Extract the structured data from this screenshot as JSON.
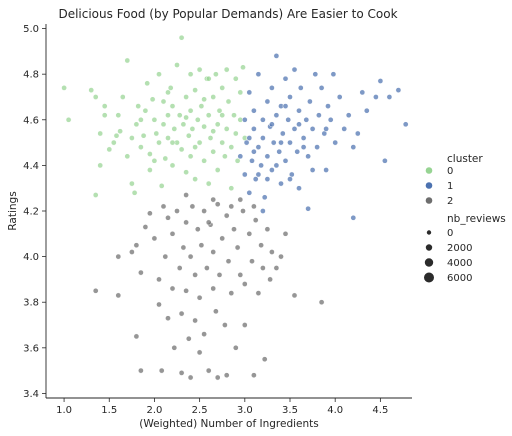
{
  "chart_data": {
    "type": "scatter",
    "title": "Delicious Food (by Popular Demands) Are Easier to Cook",
    "xlabel": "(Weighted) Number of Ingredients",
    "ylabel": "Ratings",
    "xlim": [
      0.8,
      4.85
    ],
    "ylim": [
      3.38,
      5.02
    ],
    "xticks": [
      1.0,
      1.5,
      2.0,
      2.5,
      3.0,
      3.5,
      4.0,
      4.5
    ],
    "xtick_labels": [
      "1.0",
      "1.5",
      "2.0",
      "2.5",
      "3.0",
      "3.5",
      "4.0",
      "4.5"
    ],
    "yticks": [
      3.4,
      3.6,
      3.8,
      4.0,
      4.2,
      4.4,
      4.6,
      4.8,
      5.0
    ],
    "ytick_labels": [
      "3.4",
      "3.6",
      "3.8",
      "4.0",
      "4.2",
      "4.4",
      "4.6",
      "4.8",
      "5.0"
    ],
    "grid": false,
    "legend_placement": "right",
    "hue": {
      "title": "cluster",
      "entries": [
        {
          "label": "0",
          "color": "#97d493"
        },
        {
          "label": "1",
          "color": "#4c72b0"
        },
        {
          "label": "2",
          "color": "#6e6e6e"
        }
      ]
    },
    "size_legend": {
      "title": "nb_reviews",
      "entries": [
        "0",
        "2000",
        "4000",
        "6000"
      ]
    },
    "series": [
      {
        "name": "0",
        "color": "#97d493",
        "points": [
          [
            1.0,
            4.74
          ],
          [
            1.05,
            4.6
          ],
          [
            1.3,
            4.73
          ],
          [
            1.35,
            4.7
          ],
          [
            1.4,
            4.54
          ],
          [
            1.45,
            4.62
          ],
          [
            1.45,
            4.66
          ],
          [
            1.4,
            4.4
          ],
          [
            1.35,
            4.27
          ],
          [
            1.5,
            4.47
          ],
          [
            1.55,
            4.5
          ],
          [
            1.58,
            4.53
          ],
          [
            1.6,
            4.62
          ],
          [
            1.62,
            4.55
          ],
          [
            1.65,
            4.7
          ],
          [
            1.7,
            4.86
          ],
          [
            1.7,
            4.44
          ],
          [
            1.75,
            4.52
          ],
          [
            1.75,
            4.32
          ],
          [
            1.78,
            4.28
          ],
          [
            1.8,
            4.58
          ],
          [
            1.82,
            4.66
          ],
          [
            1.85,
            4.48
          ],
          [
            1.88,
            4.53
          ],
          [
            1.9,
            4.64
          ],
          [
            1.92,
            4.76
          ],
          [
            1.95,
            4.45
          ],
          [
            1.95,
            4.38
          ],
          [
            1.98,
            4.69
          ],
          [
            2.0,
            4.6
          ],
          [
            2.02,
            4.54
          ],
          [
            2.05,
            4.5
          ],
          [
            2.05,
            4.8
          ],
          [
            2.08,
            4.31
          ],
          [
            2.1,
            4.58
          ],
          [
            2.1,
            4.68
          ],
          [
            2.12,
            4.43
          ],
          [
            2.15,
            4.62
          ],
          [
            2.15,
            4.52
          ],
          [
            2.18,
            4.74
          ],
          [
            2.2,
            4.66
          ],
          [
            2.2,
            4.4
          ],
          [
            2.22,
            4.56
          ],
          [
            2.25,
            4.84
          ],
          [
            2.25,
            4.5
          ],
          [
            2.28,
            4.62
          ],
          [
            2.3,
            4.96
          ],
          [
            2.3,
            4.47
          ],
          [
            2.32,
            4.58
          ],
          [
            2.35,
            4.7
          ],
          [
            2.35,
            4.37
          ],
          [
            2.38,
            4.53
          ],
          [
            2.4,
            4.64
          ],
          [
            2.4,
            4.44
          ],
          [
            2.42,
            4.56
          ],
          [
            2.45,
            4.73
          ],
          [
            2.45,
            4.34
          ],
          [
            2.48,
            4.6
          ],
          [
            2.5,
            4.82
          ],
          [
            2.5,
            4.5
          ],
          [
            2.52,
            4.66
          ],
          [
            2.55,
            4.42
          ],
          [
            2.55,
            4.57
          ],
          [
            2.58,
            4.78
          ],
          [
            2.6,
            4.62
          ],
          [
            2.6,
            4.32
          ],
          [
            2.62,
            4.52
          ],
          [
            2.65,
            4.7
          ],
          [
            2.65,
            4.46
          ],
          [
            2.68,
            4.8
          ],
          [
            2.7,
            4.58
          ],
          [
            2.7,
            4.38
          ],
          [
            2.72,
            4.64
          ],
          [
            2.75,
            4.5
          ],
          [
            2.75,
            4.74
          ],
          [
            2.78,
            4.44
          ],
          [
            2.8,
            4.82
          ],
          [
            2.8,
            4.56
          ],
          [
            2.82,
            4.68
          ],
          [
            2.85,
            4.48
          ],
          [
            2.85,
            4.3
          ],
          [
            2.88,
            4.62
          ],
          [
            2.9,
            4.78
          ],
          [
            2.9,
            4.54
          ],
          [
            2.92,
            4.42
          ],
          [
            2.95,
            4.72
          ],
          [
            2.95,
            4.6
          ],
          [
            2.98,
            4.83
          ],
          [
            3.0,
            4.52
          ],
          [
            2.6,
            4.78
          ],
          [
            2.4,
            4.8
          ],
          [
            2.2,
            4.5
          ],
          [
            2.0,
            4.42
          ],
          [
            2.35,
            4.61
          ],
          [
            2.55,
            4.69
          ],
          [
            2.75,
            4.62
          ],
          [
            2.15,
            4.72
          ],
          [
            2.45,
            4.48
          ],
          [
            2.65,
            4.55
          ],
          [
            1.85,
            4.6
          ]
        ]
      },
      {
        "name": "1",
        "color": "#4c72b0",
        "points": [
          [
            2.95,
            4.44
          ],
          [
            3.0,
            4.6
          ],
          [
            3.0,
            4.36
          ],
          [
            3.02,
            4.5
          ],
          [
            3.05,
            4.72
          ],
          [
            3.05,
            4.28
          ],
          [
            3.08,
            4.42
          ],
          [
            3.1,
            4.56
          ],
          [
            3.1,
            4.64
          ],
          [
            3.12,
            4.34
          ],
          [
            3.15,
            4.48
          ],
          [
            3.15,
            4.8
          ],
          [
            3.18,
            4.4
          ],
          [
            3.2,
            4.6
          ],
          [
            3.2,
            4.52
          ],
          [
            3.22,
            4.26
          ],
          [
            3.25,
            4.68
          ],
          [
            3.25,
            4.44
          ],
          [
            3.28,
            4.57
          ],
          [
            3.3,
            4.38
          ],
          [
            3.3,
            4.74
          ],
          [
            3.32,
            4.5
          ],
          [
            3.35,
            4.88
          ],
          [
            3.35,
            4.62
          ],
          [
            3.38,
            4.46
          ],
          [
            3.4,
            4.32
          ],
          [
            3.4,
            4.66
          ],
          [
            3.42,
            4.54
          ],
          [
            3.45,
            4.78
          ],
          [
            3.45,
            4.42
          ],
          [
            3.48,
            4.6
          ],
          [
            3.5,
            4.5
          ],
          [
            3.5,
            4.7
          ],
          [
            3.52,
            4.36
          ],
          [
            3.55,
            4.82
          ],
          [
            3.55,
            4.56
          ],
          [
            3.58,
            4.46
          ],
          [
            3.6,
            4.64
          ],
          [
            3.6,
            4.3
          ],
          [
            3.62,
            4.74
          ],
          [
            3.65,
            4.52
          ],
          [
            3.68,
            4.6
          ],
          [
            3.7,
            4.44
          ],
          [
            3.72,
            4.68
          ],
          [
            3.75,
            4.56
          ],
          [
            3.78,
            4.8
          ],
          [
            3.8,
            4.48
          ],
          [
            3.82,
            4.62
          ],
          [
            3.85,
            4.74
          ],
          [
            3.88,
            4.54
          ],
          [
            3.9,
            4.38
          ],
          [
            3.92,
            4.66
          ],
          [
            3.95,
            4.6
          ],
          [
            3.98,
            4.8
          ],
          [
            4.0,
            4.5
          ],
          [
            4.05,
            4.7
          ],
          [
            4.1,
            4.56
          ],
          [
            4.15,
            4.62
          ],
          [
            4.2,
            4.48
          ],
          [
            4.25,
            4.54
          ],
          [
            4.3,
            4.72
          ],
          [
            4.35,
            4.64
          ],
          [
            4.45,
            4.7
          ],
          [
            4.5,
            4.77
          ],
          [
            4.6,
            4.7
          ],
          [
            4.7,
            4.73
          ],
          [
            4.78,
            4.58
          ],
          [
            4.55,
            4.42
          ],
          [
            4.2,
            4.17
          ],
          [
            3.7,
            4.21
          ],
          [
            3.2,
            4.2
          ],
          [
            3.05,
            4.52
          ],
          [
            3.15,
            4.36
          ],
          [
            3.35,
            4.4
          ],
          [
            3.5,
            4.34
          ],
          [
            3.65,
            4.48
          ],
          [
            3.3,
            4.58
          ],
          [
            3.45,
            4.66
          ],
          [
            3.6,
            4.58
          ],
          [
            3.75,
            4.38
          ],
          [
            3.9,
            4.56
          ],
          [
            3.1,
            4.46
          ],
          [
            3.25,
            4.34
          ],
          [
            3.4,
            4.5
          ]
        ]
      },
      {
        "name": "2",
        "color": "#6e6e6e",
        "points": [
          [
            1.35,
            3.85
          ],
          [
            1.6,
            3.83
          ],
          [
            1.6,
            4.0
          ],
          [
            1.75,
            4.02
          ],
          [
            1.8,
            4.05
          ],
          [
            1.85,
            3.93
          ],
          [
            1.8,
            3.65
          ],
          [
            1.85,
            3.5
          ],
          [
            1.9,
            4.13
          ],
          [
            1.95,
            4.19
          ],
          [
            2.0,
            4.08
          ],
          [
            2.05,
            3.9
          ],
          [
            2.05,
            3.79
          ],
          [
            2.08,
            3.5
          ],
          [
            2.1,
            4.22
          ],
          [
            2.12,
            4.0
          ],
          [
            2.15,
            3.73
          ],
          [
            2.2,
            4.1
          ],
          [
            2.2,
            3.86
          ],
          [
            2.22,
            3.6
          ],
          [
            2.25,
            4.2
          ],
          [
            2.28,
            3.95
          ],
          [
            2.3,
            3.75
          ],
          [
            2.3,
            3.49
          ],
          [
            2.32,
            4.04
          ],
          [
            2.35,
            4.15
          ],
          [
            2.35,
            3.85
          ],
          [
            2.38,
            3.64
          ],
          [
            2.4,
            4.0
          ],
          [
            2.4,
            3.47
          ],
          [
            2.42,
            4.22
          ],
          [
            2.45,
            3.92
          ],
          [
            2.45,
            3.72
          ],
          [
            2.48,
            4.12
          ],
          [
            2.5,
            3.82
          ],
          [
            2.5,
            3.58
          ],
          [
            2.52,
            4.05
          ],
          [
            2.55,
            4.2
          ],
          [
            2.55,
            3.66
          ],
          [
            2.58,
            3.95
          ],
          [
            2.6,
            3.5
          ],
          [
            2.62,
            4.14
          ],
          [
            2.65,
            3.86
          ],
          [
            2.65,
            4.02
          ],
          [
            2.68,
            3.76
          ],
          [
            2.7,
            4.23
          ],
          [
            2.7,
            3.47
          ],
          [
            2.72,
            3.92
          ],
          [
            2.75,
            4.08
          ],
          [
            2.78,
            3.7
          ],
          [
            2.8,
            4.18
          ],
          [
            2.8,
            3.48
          ],
          [
            2.82,
            3.98
          ],
          [
            2.85,
            3.84
          ],
          [
            2.88,
            4.12
          ],
          [
            2.9,
            3.6
          ],
          [
            2.92,
            4.04
          ],
          [
            2.95,
            3.92
          ],
          [
            2.98,
            4.2
          ],
          [
            3.0,
            3.88
          ],
          [
            3.0,
            3.7
          ],
          [
            3.05,
            4.1
          ],
          [
            3.08,
            3.98
          ],
          [
            3.1,
            3.48
          ],
          [
            3.12,
            4.16
          ],
          [
            3.15,
            3.84
          ],
          [
            3.18,
            4.05
          ],
          [
            3.2,
            3.95
          ],
          [
            3.22,
            3.55
          ],
          [
            3.25,
            4.12
          ],
          [
            3.28,
            3.9
          ],
          [
            3.3,
            4.02
          ],
          [
            3.35,
            3.95
          ],
          [
            3.4,
            4.0
          ],
          [
            3.45,
            4.1
          ],
          [
            3.55,
            3.83
          ],
          [
            3.85,
            3.8
          ],
          [
            2.95,
            4.25
          ],
          [
            2.65,
            4.25
          ],
          [
            2.35,
            4.27
          ],
          [
            3.1,
            4.22
          ],
          [
            2.15,
            4.17
          ],
          [
            2.85,
            4.22
          ],
          [
            2.6,
            4.15
          ]
        ]
      }
    ]
  }
}
